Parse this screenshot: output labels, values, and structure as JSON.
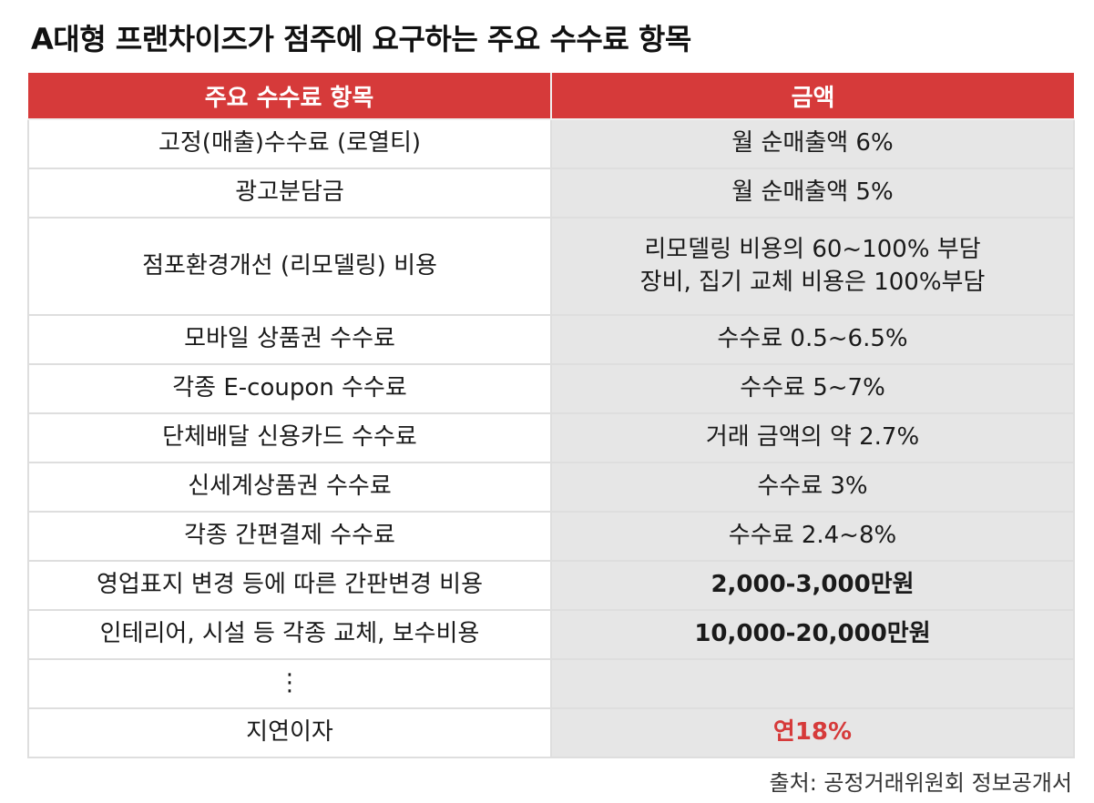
{
  "title": "A대형 프랜차이즈가 점주에 요구하는 주요 수수료 항목",
  "headers": {
    "item": "주요 수수료 항목",
    "amount": "금액"
  },
  "rows": [
    {
      "item": "고정(매출)수수료 (로열티)",
      "amount": "월 순매출액 6%"
    },
    {
      "item": "광고분담금",
      "amount": "월 순매출액 5%"
    },
    {
      "item": "점포환경개선 (리모델링) 비용",
      "amount_lines": [
        "리모델링 비용의 60~100% 부담",
        "장비, 집기 교체 비용은 100%부담"
      ]
    },
    {
      "item": "모바일 상품권 수수료",
      "amount": "수수료 0.5~6.5%"
    },
    {
      "item": "각종 E-coupon 수수료",
      "amount": "수수료 5~7%"
    },
    {
      "item": "단체배달 신용카드 수수료",
      "amount": "거래 금액의 약 2.7%"
    },
    {
      "item": "신세계상품권 수수료",
      "amount": "수수료 3%"
    },
    {
      "item": "각종 간편결제 수수료",
      "amount": "수수료 2.4~8%"
    },
    {
      "item": "영업표지 변경 등에 따른 간판변경 비용",
      "amount": "2,000-3,000만원"
    },
    {
      "item": "인테리어, 시설 등 각종 교체, 보수비용",
      "amount": "10,000-20,000만원"
    },
    {
      "item": "⋮",
      "amount": ""
    },
    {
      "item": "지연이자",
      "amount": "연18%"
    }
  ],
  "source": "출처: 공정거래위원회 정보공개서",
  "colors": {
    "header_bg": "#d63a3a",
    "highlight_text": "#d63a3a",
    "right_col_bg": "#e6e6e6"
  }
}
